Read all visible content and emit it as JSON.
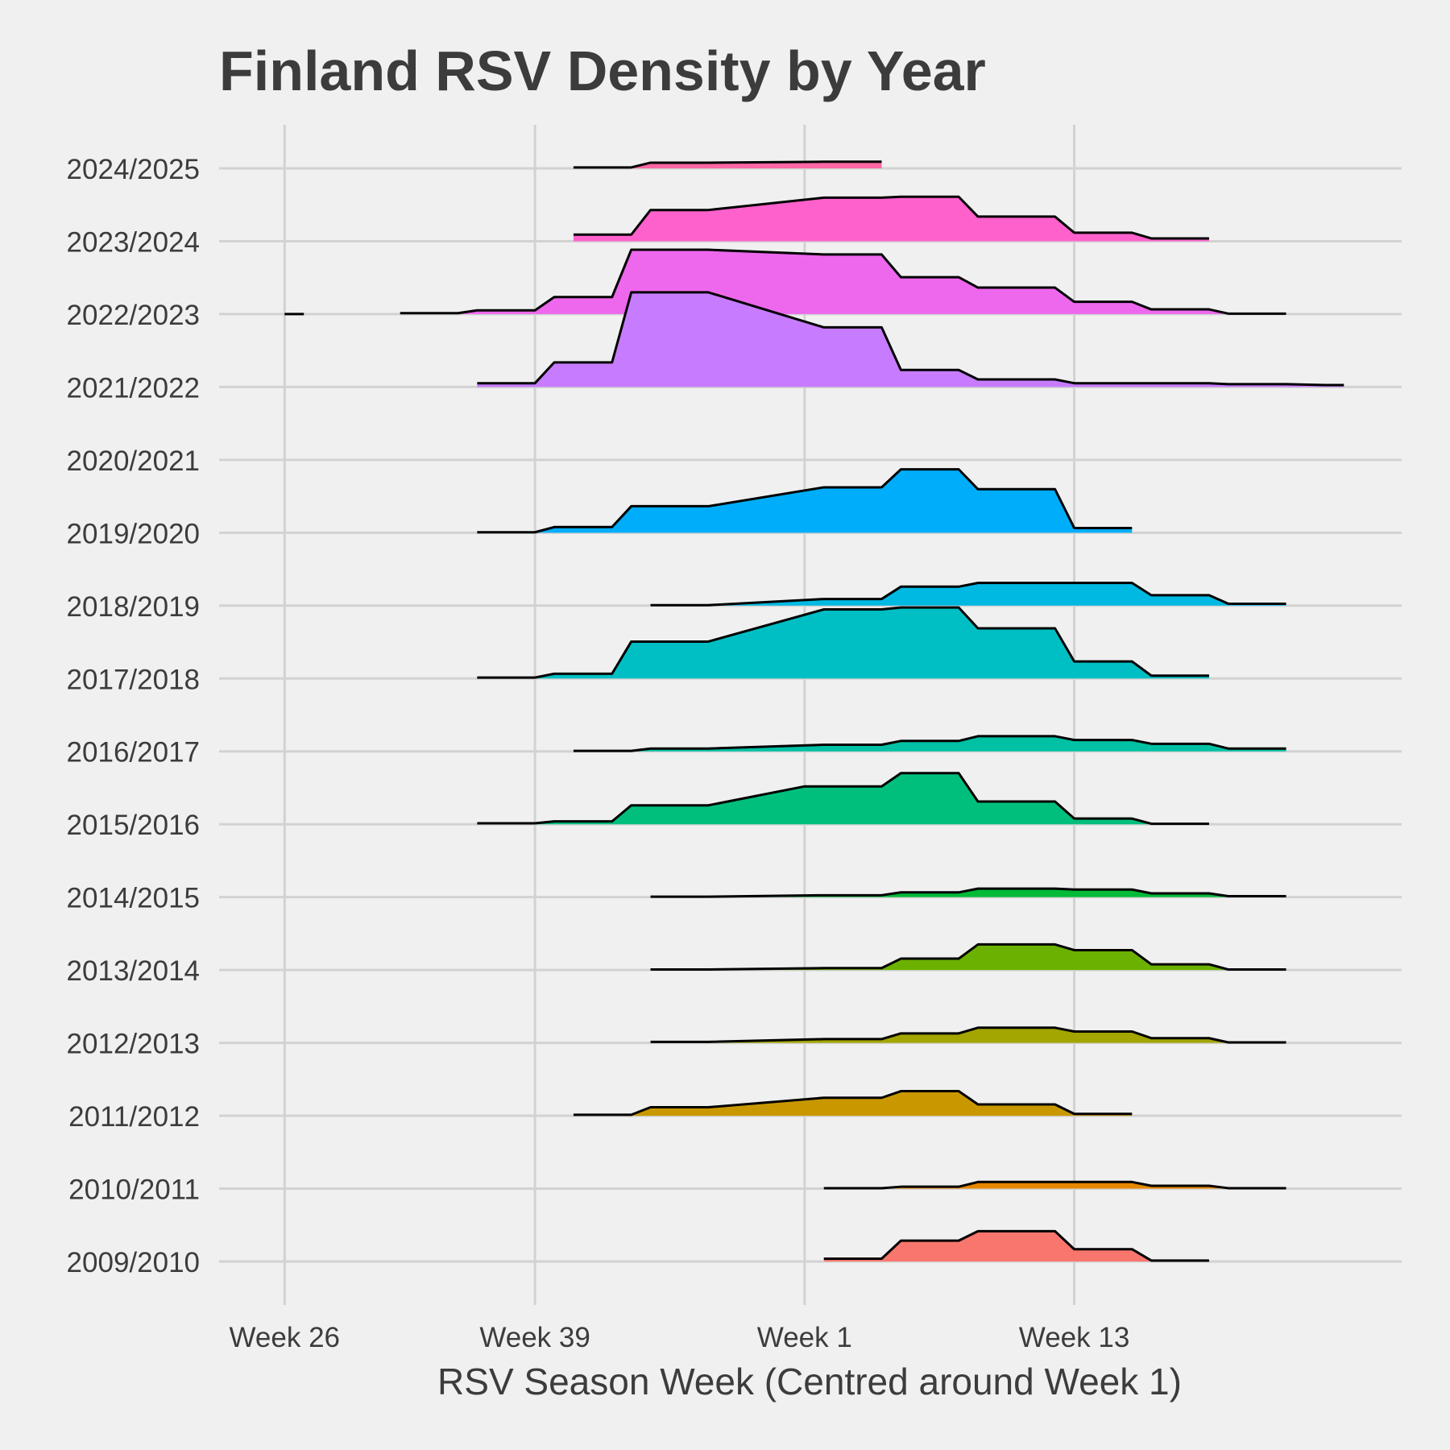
{
  "chart_data": {
    "type": "ridgeline",
    "title": "Finland RSV Density by Year",
    "xlabel": "RSV Season Week (Centred around Week 1)",
    "ylabel": "",
    "x_ticks": [
      {
        "value": 26,
        "label": "Week 26"
      },
      {
        "value": 39,
        "label": "Week 39"
      },
      {
        "value": 53,
        "label": "Week 1"
      },
      {
        "value": 67,
        "label": "Week 13"
      }
    ],
    "xlim": [
      22.6,
      84
    ],
    "scale": 7.7,
    "series": [
      {
        "name": "2009/2010",
        "color": "#F8766D",
        "x": [
          54,
          57,
          58,
          61,
          62,
          66,
          67,
          70,
          71,
          74
        ],
        "y": [
          0.3,
          0.3,
          2.2,
          2.2,
          3.2,
          3.2,
          1.3,
          1.3,
          0.1,
          0.1
        ]
      },
      {
        "name": "2010/2011",
        "color": "#E58700",
        "x": [
          54,
          57,
          58,
          61,
          62,
          66,
          67,
          70,
          71,
          74,
          75,
          78
        ],
        "y": [
          0.05,
          0.05,
          0.2,
          0.2,
          0.7,
          0.7,
          0.7,
          0.7,
          0.3,
          0.3,
          0.05,
          0.05
        ]
      },
      {
        "name": "2011/2012",
        "color": "#C99800",
        "x": [
          41,
          44,
          45,
          48,
          54,
          57,
          58,
          61,
          62,
          66,
          67,
          70
        ],
        "y": [
          0.1,
          0.1,
          0.9,
          0.9,
          1.9,
          1.9,
          2.6,
          2.6,
          1.2,
          1.2,
          0.2,
          0.2
        ]
      },
      {
        "name": "2012/2013",
        "color": "#A3A500",
        "x": [
          45,
          48,
          54,
          57,
          58,
          61,
          62,
          66,
          67,
          70,
          71,
          74,
          75,
          78
        ],
        "y": [
          0.1,
          0.1,
          0.4,
          0.4,
          1.0,
          1.0,
          1.6,
          1.6,
          1.2,
          1.2,
          0.5,
          0.5,
          0.05,
          0.05
        ]
      },
      {
        "name": "2013/2014",
        "color": "#6BB100",
        "x": [
          45,
          48,
          54,
          57,
          58,
          61,
          62,
          66,
          67,
          70,
          71,
          74,
          75,
          78
        ],
        "y": [
          0.05,
          0.05,
          0.2,
          0.2,
          1.2,
          1.2,
          2.7,
          2.7,
          2.1,
          2.1,
          0.6,
          0.6,
          0.05,
          0.05
        ]
      },
      {
        "name": "2014/2015",
        "color": "#00BA38",
        "x": [
          45,
          48,
          54,
          57,
          58,
          61,
          62,
          66,
          67,
          70,
          71,
          74,
          75,
          78
        ],
        "y": [
          0.05,
          0.05,
          0.2,
          0.2,
          0.5,
          0.5,
          0.9,
          0.9,
          0.8,
          0.8,
          0.4,
          0.4,
          0.1,
          0.1
        ]
      },
      {
        "name": "2015/2016",
        "color": "#00BF7D",
        "x": [
          36,
          39,
          40,
          43,
          44,
          48,
          53,
          57,
          58,
          61,
          62,
          66,
          67,
          70,
          71,
          74
        ],
        "y": [
          0.1,
          0.1,
          0.3,
          0.3,
          2.0,
          2.0,
          4.0,
          4.0,
          5.4,
          5.4,
          2.4,
          2.4,
          0.6,
          0.6,
          0.05,
          0.05
        ]
      },
      {
        "name": "2016/2017",
        "color": "#00C1A3",
        "x": [
          41,
          44,
          45,
          48,
          54,
          57,
          58,
          61,
          62,
          66,
          67,
          70,
          71,
          74,
          75,
          78
        ],
        "y": [
          0.05,
          0.05,
          0.3,
          0.3,
          0.7,
          0.7,
          1.1,
          1.1,
          1.6,
          1.6,
          1.2,
          1.2,
          0.8,
          0.8,
          0.3,
          0.3
        ]
      },
      {
        "name": "2017/2018",
        "color": "#00BFC4",
        "x": [
          36,
          39,
          40,
          43,
          44,
          48,
          54,
          57,
          58,
          61,
          62,
          66,
          67,
          70,
          71,
          74
        ],
        "y": [
          0.1,
          0.1,
          0.5,
          0.5,
          3.9,
          3.9,
          7.3,
          7.3,
          7.5,
          7.5,
          5.3,
          5.3,
          1.8,
          1.8,
          0.3,
          0.3
        ]
      },
      {
        "name": "2018/2019",
        "color": "#00B9E3",
        "x": [
          45,
          48,
          54,
          57,
          58,
          61,
          62,
          66,
          67,
          70,
          71,
          74,
          75,
          78
        ],
        "y": [
          0.05,
          0.05,
          0.7,
          0.7,
          2.0,
          2.0,
          2.4,
          2.4,
          2.4,
          2.4,
          1.1,
          1.1,
          0.2,
          0.2
        ]
      },
      {
        "name": "2019/2020",
        "color": "#00ADFA",
        "x": [
          36,
          39,
          40,
          43,
          44,
          48,
          54,
          57,
          58,
          61,
          62,
          66,
          67,
          70
        ],
        "y": [
          0.05,
          0.05,
          0.6,
          0.6,
          2.8,
          2.8,
          4.8,
          4.8,
          6.7,
          6.7,
          4.6,
          4.6,
          0.5,
          0.5
        ]
      },
      {
        "name": "2020/2021",
        "color": "#619CFF",
        "x": [],
        "y": []
      },
      {
        "name": "2021/2022",
        "color": "#C77CFF",
        "x": [
          36,
          39,
          40,
          43,
          44,
          48,
          54,
          57,
          58,
          61,
          62,
          66,
          67,
          70,
          71,
          74,
          75,
          78,
          80,
          81
        ],
        "y": [
          0.4,
          0.4,
          2.6,
          2.6,
          10.0,
          10.0,
          6.3,
          6.3,
          1.8,
          1.8,
          0.8,
          0.8,
          0.4,
          0.4,
          0.4,
          0.4,
          0.3,
          0.3,
          0.2,
          0.2
        ]
      },
      {
        "name": "2022/2023",
        "color": "#ED68ED",
        "x": [
          32,
          35,
          36,
          39,
          40,
          43,
          44,
          48,
          54,
          57,
          58,
          61,
          62,
          66,
          67,
          70,
          71,
          74,
          75,
          78
        ],
        "y": [
          0.1,
          0.1,
          0.4,
          0.4,
          1.8,
          1.8,
          6.8,
          6.8,
          6.3,
          6.3,
          3.9,
          3.9,
          2.8,
          2.8,
          1.3,
          1.3,
          0.5,
          0.5,
          0.05,
          0.05
        ]
      },
      {
        "name": "2023/2024",
        "color": "#FF61CC",
        "x": [
          41,
          44,
          45,
          48,
          54,
          57,
          58,
          61,
          62,
          66,
          67,
          70,
          71,
          74
        ],
        "y": [
          0.7,
          0.7,
          3.3,
          3.3,
          4.6,
          4.6,
          4.7,
          4.7,
          2.6,
          2.6,
          0.9,
          0.9,
          0.3,
          0.3
        ]
      },
      {
        "name": "2024/2025",
        "color": "#FF67A4",
        "x": [
          41,
          44,
          45,
          48,
          54,
          57
        ],
        "y": [
          0.1,
          0.1,
          0.6,
          0.6,
          0.7,
          0.7
        ]
      }
    ],
    "stray_segment": {
      "series": "2022/2023",
      "x": [
        26,
        27
      ],
      "y": [
        0,
        0
      ]
    }
  }
}
